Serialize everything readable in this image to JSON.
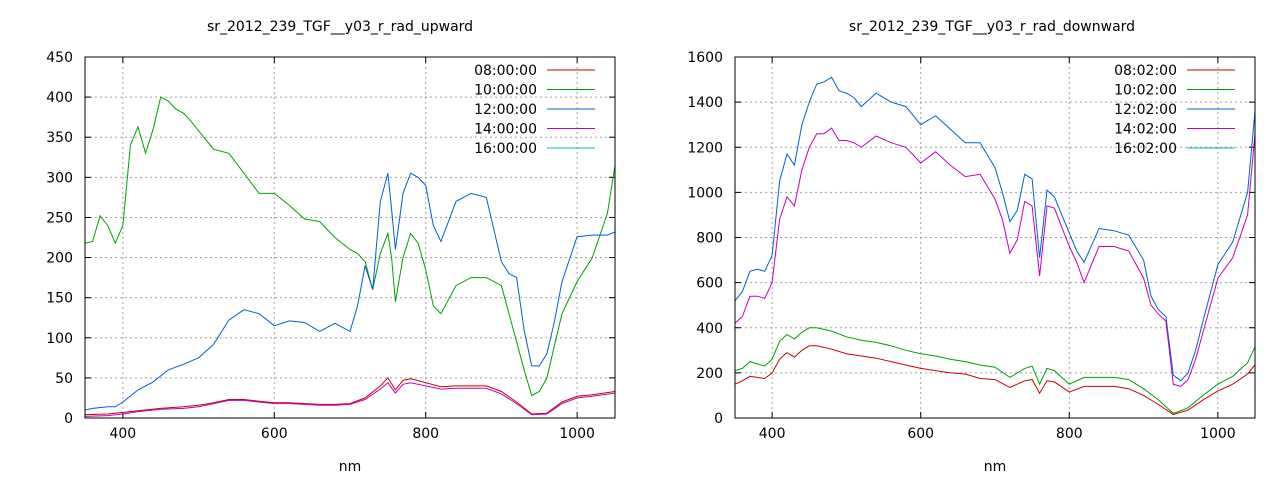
{
  "chart_data": [
    {
      "type": "line",
      "title": "sr_2012_239_TGF__y03_r_rad_upward",
      "xlabel": "nm",
      "ylabel": "",
      "xlim": [
        350,
        1050
      ],
      "ylim": [
        0,
        450
      ],
      "xticks": [
        400,
        600,
        800,
        1000
      ],
      "yticks": [
        0,
        50,
        100,
        150,
        200,
        250,
        300,
        350,
        400,
        450
      ],
      "grid": true,
      "legend_position": "top-right",
      "series": [
        {
          "name": "08:00:00",
          "color": "#cc0000",
          "x": [
            350,
            380,
            400,
            420,
            450,
            480,
            500,
            520,
            540,
            560,
            580,
            600,
            620,
            640,
            660,
            680,
            700,
            720,
            740,
            750,
            760,
            770,
            780,
            800,
            820,
            840,
            860,
            880,
            900,
            920,
            940,
            960,
            980,
            1000,
            1020,
            1050
          ],
          "y": [
            4,
            5,
            7,
            9,
            12,
            14,
            16,
            19,
            23,
            23,
            21,
            19,
            19,
            18,
            17,
            17,
            18,
            25,
            40,
            50,
            35,
            47,
            49,
            44,
            39,
            40,
            40,
            40,
            33,
            20,
            5,
            6,
            20,
            27,
            29,
            33
          ]
        },
        {
          "name": "10:00:00",
          "color": "#00a000",
          "x": [
            350,
            360,
            370,
            380,
            390,
            400,
            410,
            420,
            430,
            440,
            450,
            460,
            470,
            480,
            490,
            500,
            520,
            540,
            560,
            580,
            600,
            620,
            640,
            660,
            680,
            700,
            710,
            720,
            730,
            740,
            750,
            755,
            760,
            770,
            780,
            790,
            800,
            810,
            820,
            840,
            860,
            880,
            900,
            910,
            920,
            930,
            940,
            950,
            960,
            970,
            980,
            1000,
            1020,
            1040,
            1050
          ],
          "y": [
            218,
            220,
            252,
            240,
            218,
            240,
            340,
            363,
            330,
            360,
            400,
            395,
            385,
            380,
            370,
            358,
            335,
            330,
            305,
            280,
            280,
            265,
            248,
            245,
            225,
            210,
            205,
            195,
            160,
            205,
            230,
            200,
            145,
            200,
            230,
            218,
            185,
            140,
            130,
            165,
            175,
            175,
            165,
            130,
            95,
            60,
            28,
            33,
            50,
            90,
            130,
            170,
            200,
            255,
            315
          ]
        },
        {
          "name": "12:00:00",
          "color": "#0060d0",
          "x": [
            350,
            360,
            380,
            390,
            400,
            420,
            440,
            460,
            480,
            500,
            520,
            540,
            560,
            580,
            600,
            620,
            640,
            660,
            680,
            700,
            710,
            720,
            730,
            740,
            750,
            755,
            760,
            770,
            780,
            790,
            800,
            810,
            820,
            840,
            860,
            880,
            900,
            910,
            920,
            930,
            940,
            950,
            960,
            970,
            980,
            1000,
            1020,
            1040,
            1050
          ],
          "y": [
            10,
            12,
            14,
            14,
            20,
            35,
            45,
            60,
            67,
            75,
            92,
            122,
            135,
            130,
            115,
            121,
            119,
            108,
            118,
            108,
            140,
            190,
            160,
            270,
            305,
            260,
            210,
            280,
            305,
            300,
            290,
            240,
            220,
            270,
            280,
            275,
            195,
            180,
            175,
            110,
            65,
            65,
            80,
            120,
            170,
            226,
            228,
            228,
            232
          ]
        },
        {
          "name": "14:00:00",
          "color": "#c000c0",
          "x": [
            350,
            380,
            400,
            420,
            450,
            480,
            500,
            520,
            540,
            560,
            580,
            600,
            620,
            640,
            660,
            680,
            700,
            720,
            740,
            750,
            760,
            770,
            780,
            800,
            820,
            840,
            860,
            880,
            900,
            920,
            940,
            960,
            980,
            1000,
            1020,
            1050
          ],
          "y": [
            2,
            3,
            5,
            8,
            11,
            12,
            14,
            18,
            22,
            22,
            20,
            18,
            18,
            17,
            16,
            16,
            17,
            23,
            36,
            44,
            31,
            42,
            44,
            40,
            36,
            37,
            37,
            37,
            30,
            18,
            4,
            5,
            18,
            25,
            27,
            31
          ]
        },
        {
          "name": "16:00:00",
          "color": "#00b0d0",
          "x": [],
          "y": []
        }
      ]
    },
    {
      "type": "line",
      "title": "sr_2012_239_TGF__y03_r_rad_downward",
      "xlabel": "nm",
      "ylabel": "",
      "xlim": [
        350,
        1050
      ],
      "ylim": [
        0,
        1600
      ],
      "xticks": [
        400,
        600,
        800,
        1000
      ],
      "yticks": [
        0,
        200,
        400,
        600,
        800,
        1000,
        1200,
        1400,
        1600
      ],
      "grid": true,
      "legend_position": "top-right",
      "series": [
        {
          "name": "08:02:00",
          "color": "#cc0000",
          "x": [
            350,
            360,
            370,
            380,
            390,
            400,
            410,
            420,
            430,
            440,
            450,
            460,
            480,
            500,
            520,
            540,
            560,
            580,
            600,
            620,
            640,
            660,
            680,
            700,
            720,
            740,
            750,
            760,
            770,
            780,
            800,
            820,
            840,
            860,
            880,
            900,
            920,
            940,
            960,
            980,
            1000,
            1020,
            1040,
            1050
          ],
          "y": [
            150,
            165,
            185,
            180,
            175,
            200,
            260,
            290,
            270,
            300,
            320,
            320,
            305,
            285,
            275,
            265,
            250,
            235,
            220,
            210,
            200,
            195,
            175,
            170,
            135,
            165,
            170,
            110,
            165,
            160,
            115,
            140,
            140,
            140,
            130,
            100,
            60,
            15,
            35,
            80,
            120,
            150,
            195,
            235
          ]
        },
        {
          "name": "10:02:00",
          "color": "#00a000",
          "x": [
            350,
            360,
            370,
            380,
            390,
            400,
            410,
            420,
            430,
            440,
            450,
            460,
            480,
            500,
            520,
            540,
            560,
            580,
            600,
            620,
            640,
            660,
            680,
            700,
            720,
            740,
            750,
            760,
            770,
            780,
            800,
            820,
            840,
            860,
            880,
            900,
            920,
            940,
            960,
            980,
            1000,
            1020,
            1040,
            1050
          ],
          "y": [
            210,
            220,
            250,
            240,
            230,
            260,
            340,
            370,
            350,
            380,
            400,
            400,
            385,
            360,
            345,
            335,
            320,
            300,
            285,
            275,
            260,
            250,
            235,
            225,
            180,
            220,
            230,
            150,
            220,
            210,
            150,
            180,
            180,
            180,
            170,
            130,
            80,
            20,
            45,
            100,
            150,
            185,
            245,
            315
          ]
        },
        {
          "name": "12:02:00",
          "color": "#0060d0",
          "x": [
            350,
            360,
            370,
            380,
            390,
            400,
            410,
            420,
            430,
            440,
            450,
            460,
            470,
            480,
            490,
            500,
            510,
            520,
            540,
            560,
            580,
            600,
            620,
            640,
            660,
            680,
            700,
            710,
            720,
            730,
            740,
            750,
            760,
            770,
            780,
            800,
            810,
            820,
            840,
            860,
            880,
            900,
            910,
            920,
            930,
            940,
            950,
            960,
            970,
            980,
            1000,
            1020,
            1040,
            1050
          ],
          "y": [
            520,
            560,
            650,
            660,
            650,
            720,
            1050,
            1170,
            1120,
            1300,
            1400,
            1480,
            1490,
            1510,
            1450,
            1440,
            1420,
            1380,
            1440,
            1400,
            1380,
            1300,
            1340,
            1280,
            1220,
            1220,
            1110,
            1000,
            870,
            920,
            1080,
            1060,
            710,
            1010,
            980,
            820,
            740,
            690,
            840,
            830,
            810,
            700,
            540,
            480,
            450,
            190,
            165,
            200,
            300,
            430,
            680,
            780,
            1000,
            1360
          ]
        },
        {
          "name": "14:02:00",
          "color": "#c000c0",
          "x": [
            350,
            360,
            370,
            380,
            390,
            400,
            410,
            420,
            430,
            440,
            450,
            460,
            470,
            480,
            490,
            500,
            510,
            520,
            540,
            560,
            580,
            600,
            620,
            640,
            660,
            680,
            700,
            710,
            720,
            730,
            740,
            750,
            760,
            770,
            780,
            800,
            810,
            820,
            840,
            860,
            880,
            900,
            910,
            920,
            930,
            940,
            950,
            960,
            970,
            980,
            1000,
            1020,
            1040,
            1050
          ],
          "y": [
            420,
            450,
            540,
            540,
            530,
            600,
            880,
            980,
            940,
            1100,
            1200,
            1260,
            1260,
            1285,
            1230,
            1230,
            1220,
            1200,
            1250,
            1220,
            1200,
            1130,
            1180,
            1120,
            1070,
            1080,
            970,
            880,
            730,
            790,
            960,
            940,
            630,
            940,
            930,
            760,
            690,
            600,
            760,
            760,
            740,
            620,
            500,
            460,
            430,
            150,
            140,
            170,
            260,
            380,
            620,
            710,
            900,
            1260
          ]
        },
        {
          "name": "16:02:00",
          "color": "#00b0d0",
          "x": [],
          "y": []
        }
      ]
    }
  ]
}
